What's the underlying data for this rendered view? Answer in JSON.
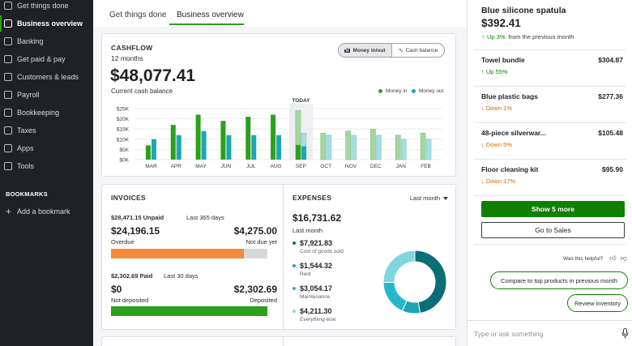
{
  "sidebar": {
    "items": [
      {
        "label": "Get things done",
        "icon": "home-icon",
        "active": false
      },
      {
        "label": "Business overview",
        "icon": "chart-icon",
        "active": true
      },
      {
        "label": "Banking",
        "icon": "bank-icon",
        "active": false
      },
      {
        "label": "Get paid & pay",
        "icon": "payment-icon",
        "active": false
      },
      {
        "label": "Customers & leads",
        "icon": "customers-icon",
        "active": false
      },
      {
        "label": "Payroll",
        "icon": "payroll-icon",
        "active": false
      },
      {
        "label": "Bookkeeping",
        "icon": "book-icon",
        "active": false
      },
      {
        "label": "Taxes",
        "icon": "taxes-icon",
        "active": false
      },
      {
        "label": "Apps",
        "icon": "apps-icon",
        "active": false
      },
      {
        "label": "Tools",
        "icon": "tools-icon",
        "active": false
      }
    ],
    "bookmarks_heading": "BOOKMARKS",
    "add_bookmark": "Add a bookmark",
    "add_glyph": "+"
  },
  "tabs": [
    {
      "label": "Get things done"
    },
    {
      "label": "Business overview"
    }
  ],
  "cashflow": {
    "title": "CASHFLOW",
    "period": "12 months",
    "amount": "$48,077.41",
    "subtitle": "Current cash balance",
    "toggle_in_out": "Money in/out",
    "toggle_balance": "Cash balance",
    "legend_in": "Money in",
    "legend_out": "Money out",
    "today_label": "TODAY"
  },
  "chart_data": {
    "type": "bar",
    "title": "Cashflow",
    "categories": [
      "MAR",
      "APR",
      "MAY",
      "JUN",
      "JUL",
      "AUG",
      "SEP",
      "OCT",
      "NOV",
      "DEC",
      "JAN",
      "FEB"
    ],
    "series": [
      {
        "name": "Money in",
        "values": [
          7,
          17,
          22,
          19,
          21,
          22,
          24,
          13,
          14,
          15,
          12,
          13
        ]
      },
      {
        "name": "Money out",
        "values": [
          10,
          12,
          14,
          12,
          12,
          12,
          13,
          12,
          12,
          12,
          10,
          10
        ]
      }
    ],
    "projected_from": "SEP",
    "today": "SEP",
    "y_ticks": [
      "$0K",
      "$5K",
      "$10K",
      "$15K",
      "$20K",
      "$25K"
    ],
    "ylim": [
      0,
      25
    ],
    "units": "thousands USD",
    "colors": {
      "in": "#2ca01c",
      "out": "#1fa5b4",
      "in_proj": "#a5d6a0",
      "out_proj": "#a6dde3"
    }
  },
  "invoices": {
    "title": "INVOICES",
    "unpaid_amount": "$28,471.15 Unpaid",
    "unpaid_period": "Last 365 days",
    "overdue_amount": "$24,196.15",
    "overdue_label": "Overdue",
    "notdue_amount": "$4,275.00",
    "notdue_label": "Not due yet",
    "unpaid_fraction": 0.85,
    "paid_amount": "$2,302.69 Paid",
    "paid_period": "Last 30 days",
    "notdeposited_amount": "$0",
    "notdeposited_label": "Not deposited",
    "deposited_amount": "$2,302.69",
    "deposited_label": "Deposited",
    "deposited_fraction": 1.0
  },
  "expenses": {
    "title": "EXPENSES",
    "period_select": "Last month",
    "total": "$16,731.62",
    "period": "Last month",
    "items": [
      {
        "amount": "$7,921.83",
        "category": "Cost of goods sold",
        "share": 0.473
      },
      {
        "amount": "$1,544.32",
        "category": "Rent",
        "share": 0.092
      },
      {
        "amount": "$3,054.17",
        "category": "Maintenance",
        "share": 0.183
      },
      {
        "amount": "$4,211.30",
        "category": "Everything else",
        "share": 0.252
      }
    ],
    "colors": [
      "#0b6d75",
      "#1fa5b4",
      "#26b8c9",
      "#7fd6df"
    ]
  },
  "products": {
    "top": {
      "name": "Blue silicone spatula",
      "price": "$392.41",
      "change": "Up 3%",
      "change_suffix": "from the previous month",
      "direction": "up"
    },
    "rows": [
      {
        "name": "Towel bundle",
        "price": "$304.87",
        "change": "Up 55%",
        "direction": "up"
      },
      {
        "name": "Blue plastic bags",
        "price": "$277.36",
        "change": "Down 1%",
        "direction": "down"
      },
      {
        "name": "48-piece silverwar...",
        "price": "$105.48",
        "change": "Down 5%",
        "direction": "down"
      },
      {
        "name": "Floor cleaning kit",
        "price": "$95.90",
        "change": "Down 17%",
        "direction": "down"
      }
    ],
    "show_more": "Show 5 more",
    "go_to_sales": "Go to Sales",
    "helpful": "Was this helpful?",
    "suggest_compare": "Compare to top products in previous month",
    "suggest_inventory": "Review inventory",
    "ask_placeholder": "Type or ask something"
  }
}
